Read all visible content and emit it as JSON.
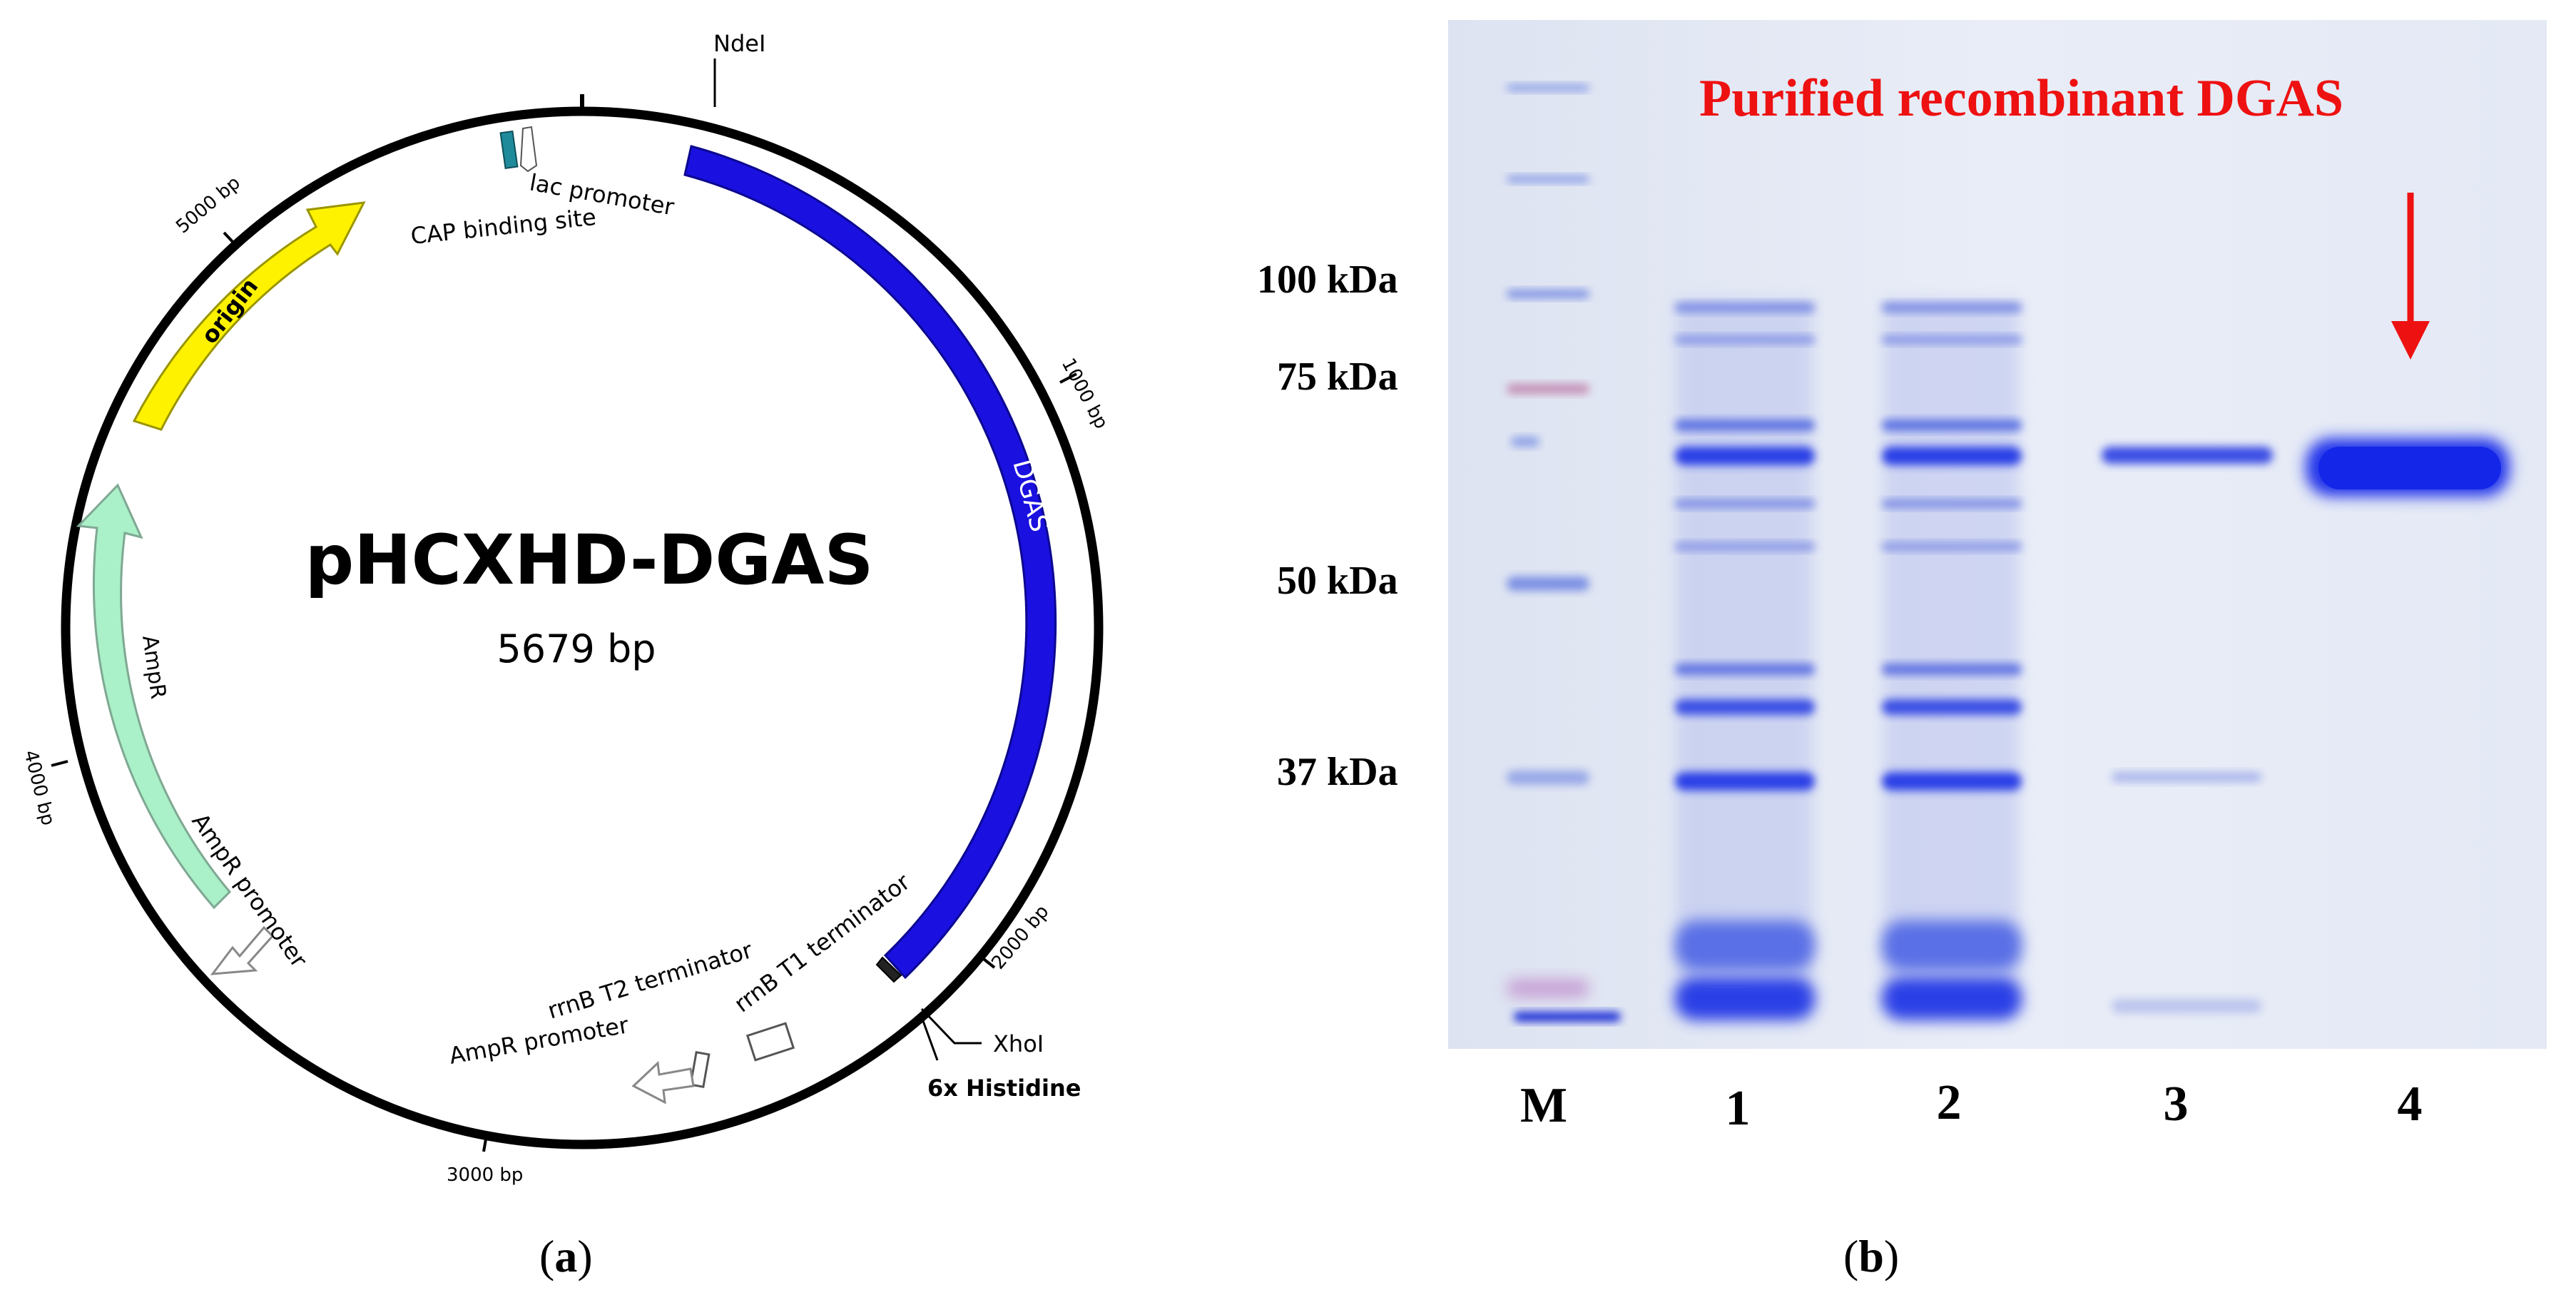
{
  "panel_a": {
    "plasmid_name": "pHCXHD-DGAS",
    "plasmid_size": "5679 bp",
    "site_ndei": "NdeI",
    "site_xhoi": "XhoI",
    "his_tag": "6x Histidine",
    "tick_1000": "1000 bp",
    "tick_2000": "2000 bp",
    "tick_3000": "3000 bp",
    "tick_4000": "4000 bp",
    "tick_5000": "5000 bp",
    "feature_dgas": "DGAS",
    "feature_origin": "origin",
    "feature_ampr": "AmpR",
    "feature_ampr_promoter_left": "AmpR promoter",
    "feature_ampr_promoter_bottom": "AmpR promoter",
    "feature_lac_promoter": "lac promoter",
    "feature_cap_site": "CAP binding site",
    "feature_t2": "rrnB T2 terminator",
    "feature_t1": "rrnB T1 terminator",
    "label": "a",
    "colors": {
      "dgas": "#1a10e0",
      "origin": "#fff200",
      "ampr": "#aaf0c8",
      "cap": "#1f8b9a"
    }
  },
  "panel_b": {
    "title": "Purified recombinant DGAS",
    "marker_100": "100 kDa",
    "marker_75": "75 kDa",
    "marker_50": "50 kDa",
    "marker_37": "37 kDa",
    "lane_m": "M",
    "lane_1": "1",
    "lane_2": "2",
    "lane_3": "3",
    "lane_4": "4",
    "label": "b",
    "colors": {
      "title": "#ee1111",
      "arrow": "#ee1111",
      "gel_bg": "#e6ebf5",
      "band": "#2b3fe6"
    }
  }
}
